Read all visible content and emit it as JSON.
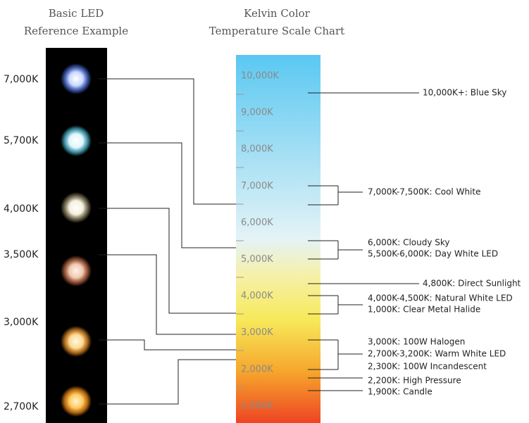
{
  "led_heading": [
    "Basic LED",
    "Reference Example"
  ],
  "scale_heading": [
    "Kelvin Color",
    "Temperature Scale Chart"
  ],
  "led_labels": [
    "7,000K",
    "5,700K",
    "4,000K",
    "3,500K",
    "3,000K",
    "2,700K"
  ],
  "scale_labels": [
    "10,000K",
    "9,000K",
    "8,000K",
    "7,000K",
    "6,000K",
    "5,000K",
    "4,000K",
    "3,000K",
    "2,000K",
    "1,000K"
  ],
  "notes": [
    "10,000K+: Blue Sky",
    "7,000K-7,500K: Cool White",
    "6,000K: Cloudy Sky",
    "5,500K-6,000K: Day White LED",
    "4,800K: Direct Sunlight",
    "4,000K-4,500K: Natural White LED",
    "1,000K: Clear Metal Halide",
    "3,000K: 100W Halogen",
    "2,700K-3,200K: Warm White LED",
    "2,300K: 100W Incandescent",
    "2,200K: High Pressure",
    "1,900K: Candle"
  ]
}
